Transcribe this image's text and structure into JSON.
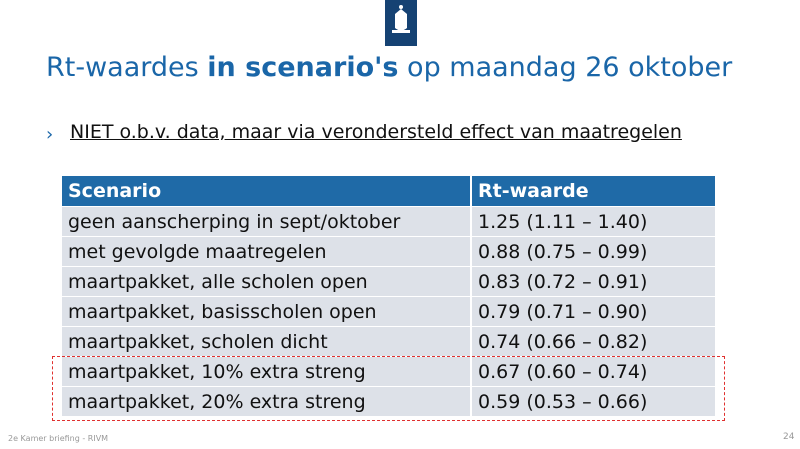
{
  "title": {
    "before": "Rt-waardes ",
    "bold": "in scenario's",
    "after": " op maandag 26 oktober"
  },
  "bullet": "NIET o.b.v. data, maar via verondersteld effect van maatregelen",
  "table": {
    "header": [
      "Scenario",
      "Rt-waarde"
    ],
    "rows": [
      [
        "geen aanscherping in sept/oktober",
        "1.25 (1.11 – 1.40)"
      ],
      [
        "met gevolgde maatregelen",
        "0.88 (0.75 – 0.99)"
      ],
      [
        "maartpakket, alle scholen open",
        "0.83 (0.72 – 0.91)"
      ],
      [
        "maartpakket, basisscholen open",
        "0.79 (0.71 – 0.90)"
      ],
      [
        "maartpakket, scholen dicht",
        "0.74 (0.66 – 0.82)"
      ],
      [
        "maartpakket, 10% extra streng",
        "0.67 (0.60 – 0.74)"
      ],
      [
        "maartpakket, 20% extra streng",
        "0.59 (0.53 – 0.66)"
      ]
    ]
  },
  "footer": "2e Kamer briefing - RIVM",
  "page_number": "24"
}
